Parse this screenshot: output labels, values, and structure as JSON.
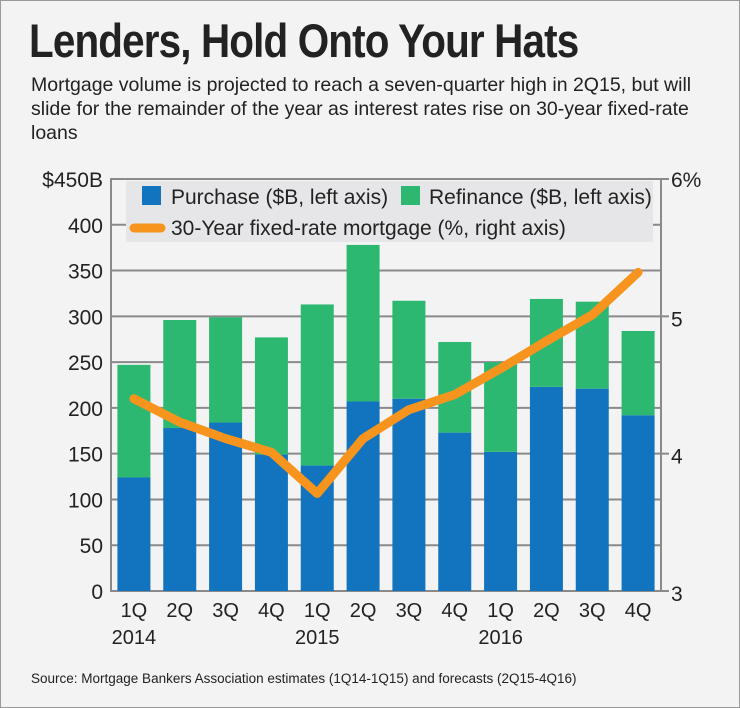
{
  "chart_data": {
    "type": "bar",
    "stacked": true,
    "title": "Lenders, Hold Onto Your Hats",
    "subtitle": "Mortgage volume is projected to reach a seven-quarter high in 2Q15, but will slide for the remainder of the year as interest rates rise on 30-year fixed-rate loans",
    "source": "Source: Mortgage Bankers Association estimates (1Q14-1Q15) and forecasts (2Q15-4Q16)",
    "categories": [
      "1Q",
      "2Q",
      "3Q",
      "4Q",
      "1Q",
      "2Q",
      "3Q",
      "4Q",
      "1Q",
      "2Q",
      "3Q",
      "4Q"
    ],
    "year_labels": [
      {
        "index": 0,
        "label": "2014"
      },
      {
        "index": 4,
        "label": "2015"
      },
      {
        "index": 8,
        "label": "2016"
      }
    ],
    "series": [
      {
        "name": "Purchase ($B, left axis)",
        "type": "bar",
        "color": "#1273be",
        "values": [
          124,
          178,
          184,
          149,
          137,
          207,
          210,
          173,
          152,
          223,
          221,
          192
        ]
      },
      {
        "name": "Refinance ($B, left axis)",
        "type": "bar",
        "color": "#2db872",
        "values": [
          123,
          118,
          115,
          128,
          176,
          171,
          107,
          99,
          98,
          96,
          95,
          92
        ]
      },
      {
        "name": "30-Year fixed-rate mortgage (%, right axis)",
        "type": "line",
        "axis": "right",
        "color": "#f7941d",
        "values": [
          4.4,
          4.23,
          4.11,
          4.01,
          3.71,
          4.11,
          4.32,
          4.43,
          4.62,
          4.82,
          5.01,
          5.32
        ]
      }
    ],
    "left_axis": {
      "ylim": [
        0,
        450
      ],
      "ticks": [
        "0",
        "50",
        "100",
        "150",
        "200",
        "250",
        "300",
        "350",
        "400",
        "$450B"
      ]
    },
    "right_axis": {
      "ylim": [
        3,
        6
      ],
      "ticks": [
        "3",
        "4",
        "5",
        "6%"
      ]
    },
    "grid": true,
    "legend_placement": "top"
  }
}
